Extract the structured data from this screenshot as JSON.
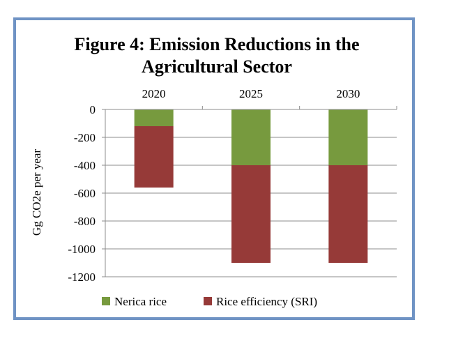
{
  "chart_data": {
    "type": "bar",
    "stacked": true,
    "title_lines": [
      "Figure 4: Emission Reductions in the",
      "Agricultural Sector"
    ],
    "xlabel": "",
    "ylabel": "Gg CO2e per year",
    "categories": [
      "2020",
      "2025",
      "2030"
    ],
    "x_axis_position": "top",
    "ylim": [
      -1200,
      0
    ],
    "yticks": [
      0,
      -200,
      -400,
      -600,
      -800,
      -1000,
      -1200
    ],
    "ytick_labels": [
      "0",
      "-200",
      "-400",
      "-600",
      "-800",
      "-1000",
      "-1200"
    ],
    "grid": true,
    "legend_position": "bottom",
    "series": [
      {
        "name": "Nerica rice",
        "color": "#779a3e",
        "values": [
          -120,
          -400,
          -400
        ]
      },
      {
        "name": "Rice efficiency (SRI)",
        "color": "#963a38",
        "values": [
          -440,
          -700,
          -700
        ]
      }
    ]
  }
}
